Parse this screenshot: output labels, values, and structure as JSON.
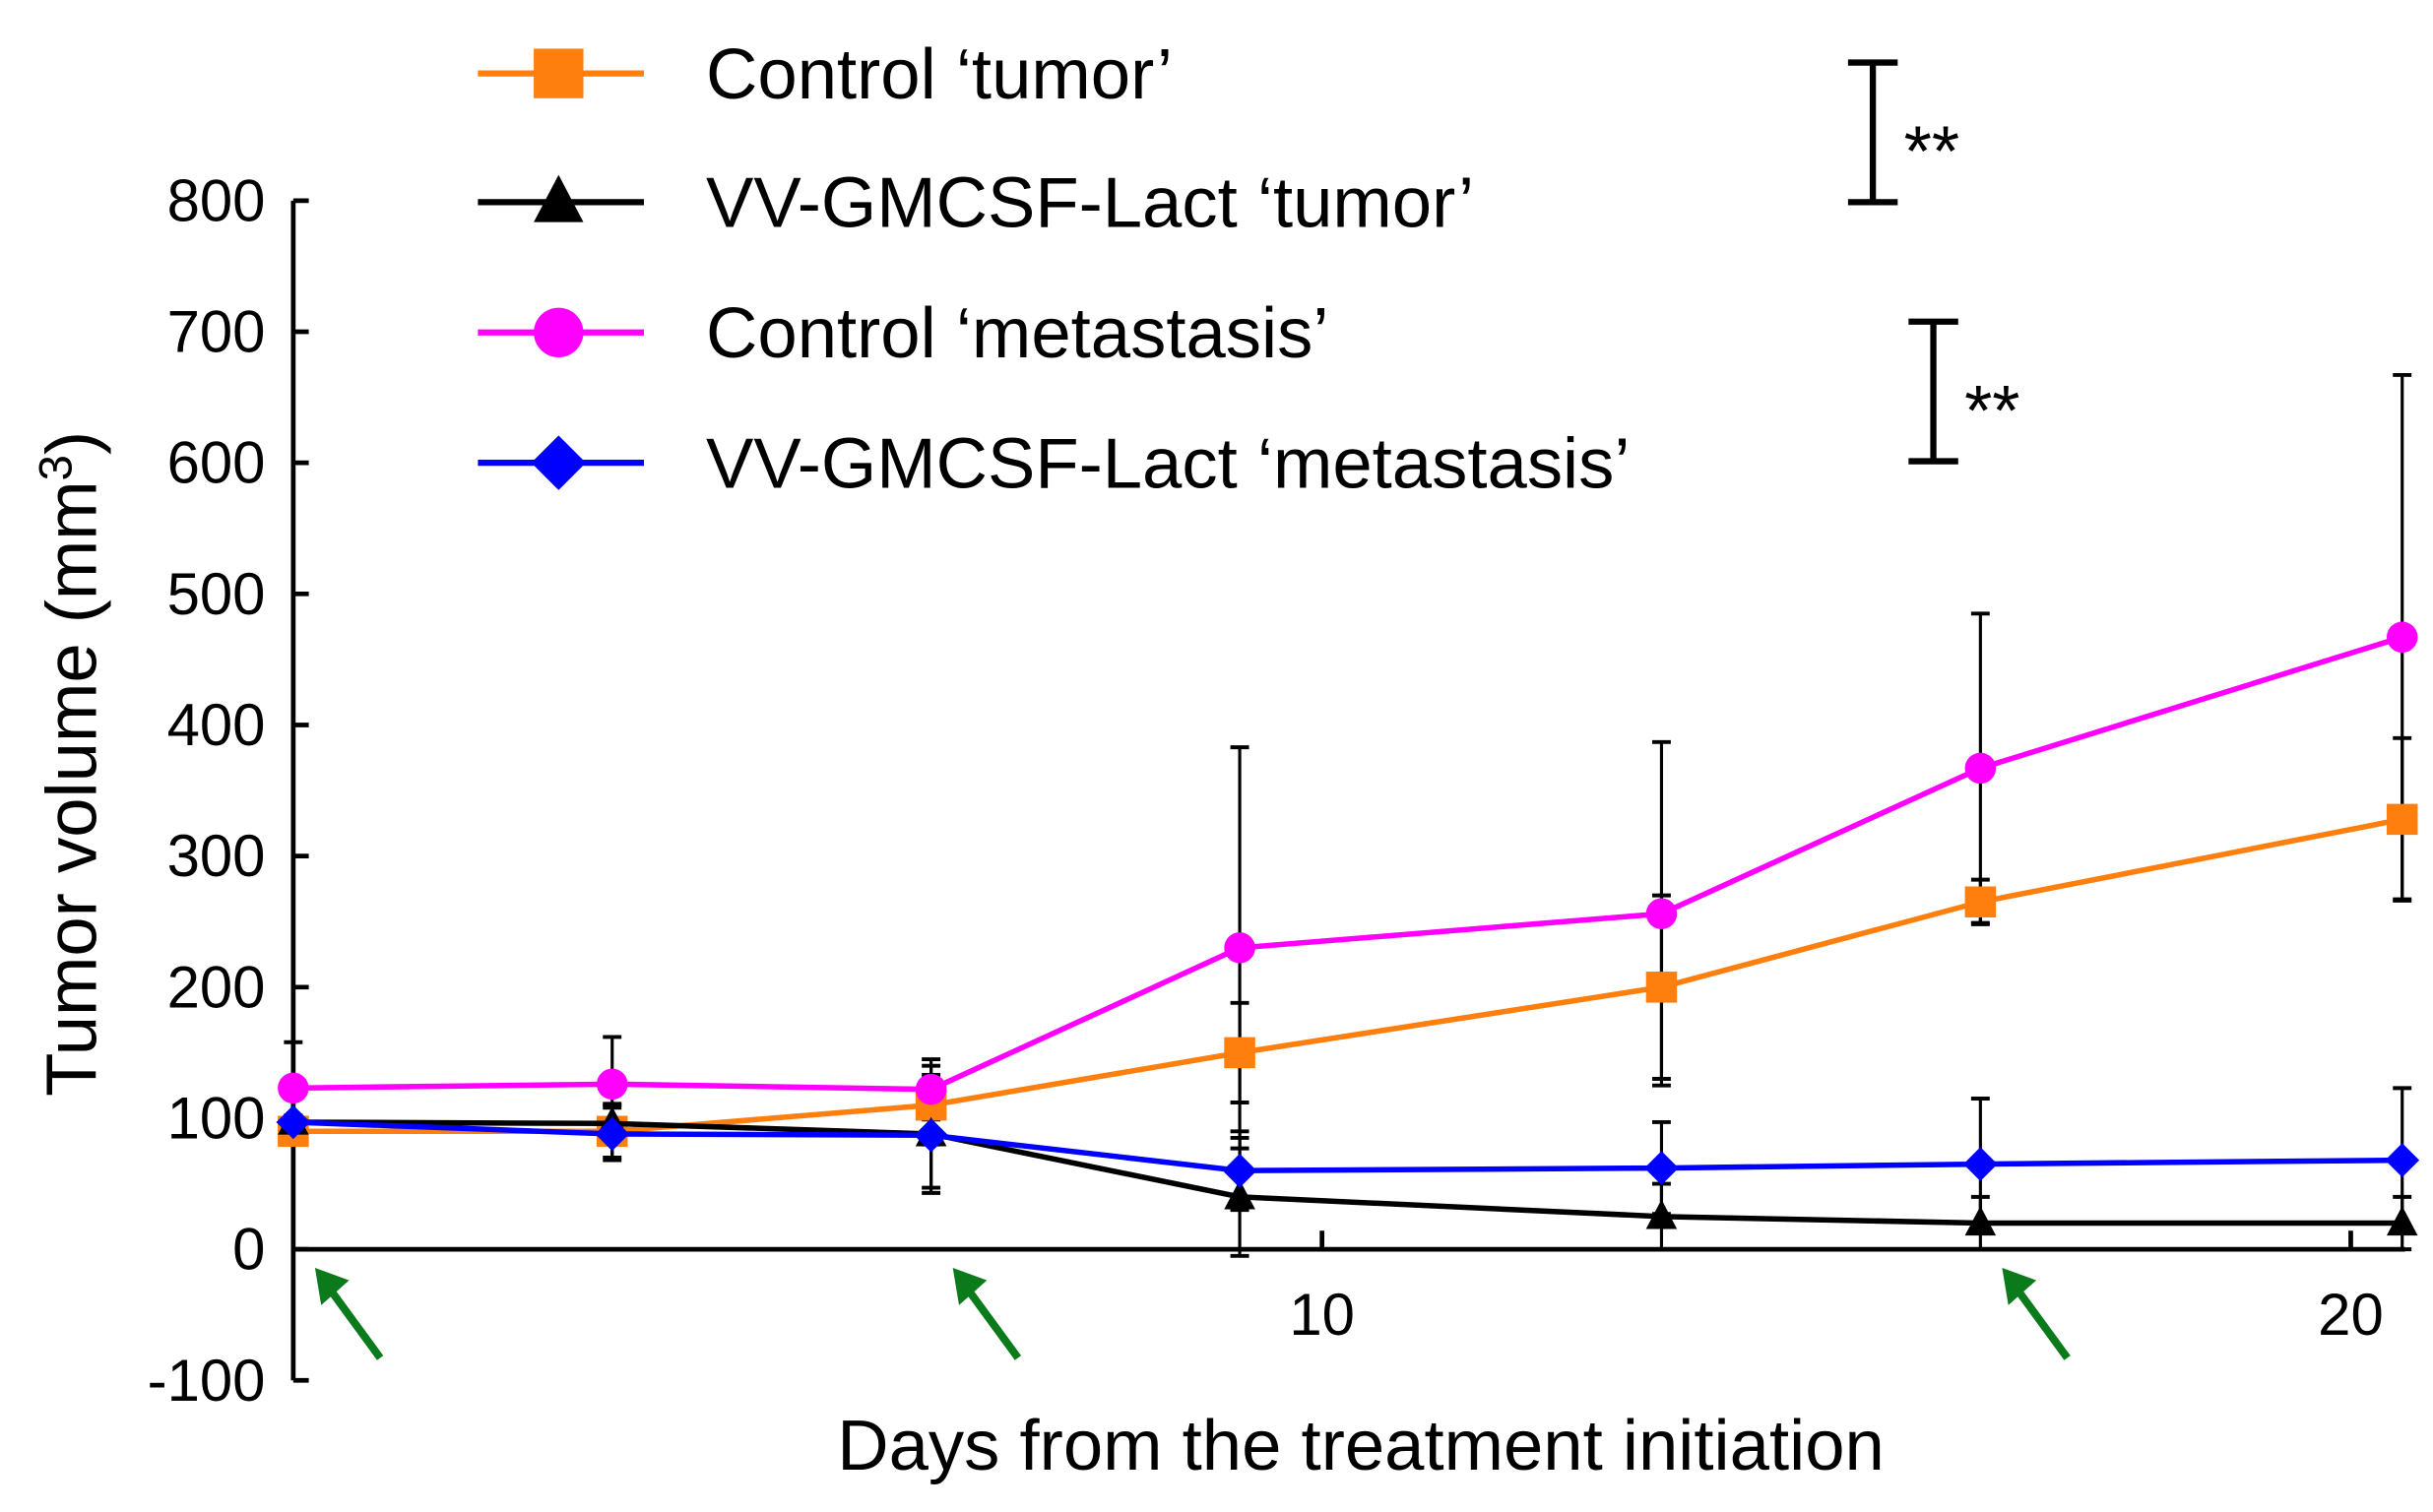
{
  "chart_data": {
    "type": "line",
    "title": "",
    "xlabel": "Days from the treatment initiation",
    "ylabel": "Tumor volume (mm",
    "ylabel_sup": "3",
    "ylabel_end": ")",
    "xlim": [
      0,
      20.6
    ],
    "ylim": [
      -100,
      800
    ],
    "x_ticks": [
      10,
      20
    ],
    "x_tick_labels": [
      "10",
      "20"
    ],
    "y_ticks": [
      -100,
      0,
      100,
      200,
      300,
      400,
      500,
      600,
      700,
      800
    ],
    "y_tick_labels": [
      "-100",
      "0",
      "100",
      "200",
      "300",
      "400",
      "500",
      "600",
      "700",
      "800"
    ],
    "grid": false,
    "legend_position": "top",
    "x": [
      0,
      3.1,
      6.2,
      9.2,
      13.3,
      16.4,
      20.5
    ],
    "series": [
      {
        "name": "Control ‘tumor’",
        "color": "#ff7f0e",
        "marker": "square",
        "values": [
          90,
          90,
          110,
          150,
          200,
          265,
          328
        ],
        "errors": [
          10,
          20,
          30,
          38,
          70,
          17,
          62
        ]
      },
      {
        "name": "VV-GMCSF-Lact ‘tumor’",
        "color": "#000000",
        "marker": "triangle",
        "values": [
          97,
          96,
          88,
          40,
          25,
          20,
          20
        ],
        "errors": [
          5,
          15,
          45,
          45,
          25,
          20,
          20
        ]
      },
      {
        "name": "Control ‘metastasis’",
        "color": "#ff00ff",
        "marker": "circle",
        "values": [
          123,
          126,
          122,
          230,
          256,
          367,
          467
        ],
        "errors": [
          35,
          36,
          23,
          153,
          131,
          118,
          200
        ]
      },
      {
        "name": "VV-GMCSF-Lact ‘metastasis’",
        "color": "#0000ff",
        "marker": "diamond",
        "values": [
          97,
          88,
          87,
          60,
          62,
          65,
          68
        ],
        "errors": [
          5,
          20,
          40,
          30,
          35,
          50,
          55
        ]
      }
    ],
    "treatment_arrows_days": [
      0,
      6.2,
      16.4
    ],
    "arrow_color": "#0a7a1a",
    "significance": [
      {
        "groups": "tumor",
        "label": "**"
      },
      {
        "groups": "metastasis",
        "label": "**"
      }
    ]
  }
}
